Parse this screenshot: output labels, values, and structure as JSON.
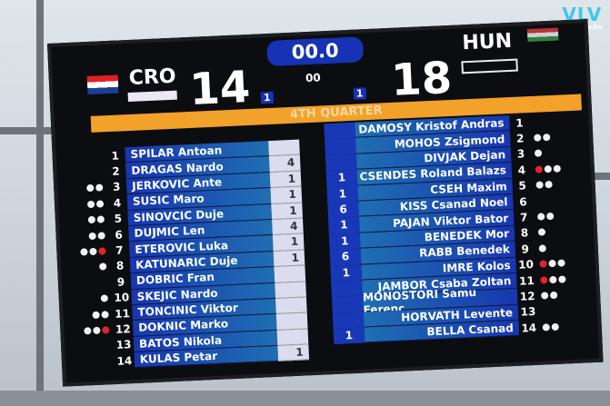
{
  "logo": {
    "mark": "VLV",
    "url": "www.vlv.hu"
  },
  "clock": "00.0",
  "shot_clock": "00",
  "period": "4TH QUARTER",
  "home": {
    "code": "CRO",
    "score": "14",
    "timeouts": "1",
    "flag": "croatia-flag",
    "players": [
      {
        "no": "1",
        "name": "SPILAR Antoan",
        "goals": "",
        "fouls": 0,
        "red": false
      },
      {
        "no": "2",
        "name": "DRAGAS Nardo",
        "goals": "4",
        "fouls": 0,
        "red": false
      },
      {
        "no": "3",
        "name": "JERKOVIC Ante",
        "goals": "1",
        "fouls": 2,
        "red": false
      },
      {
        "no": "4",
        "name": "SUSIC Maro",
        "goals": "1",
        "fouls": 2,
        "red": false
      },
      {
        "no": "5",
        "name": "SINOVCIC Duje",
        "goals": "1",
        "fouls": 2,
        "red": false
      },
      {
        "no": "6",
        "name": "DUJMIC Len",
        "goals": "4",
        "fouls": 2,
        "red": false
      },
      {
        "no": "7",
        "name": "ETEROVIC Luka",
        "goals": "1",
        "fouls": 2,
        "red": true
      },
      {
        "no": "8",
        "name": "KATUNARIC Duje",
        "goals": "1",
        "fouls": 1,
        "red": false
      },
      {
        "no": "9",
        "name": "DOBRIC Fran",
        "goals": "",
        "fouls": 0,
        "red": false
      },
      {
        "no": "10",
        "name": "SKEJIC Nardo",
        "goals": "",
        "fouls": 1,
        "red": false
      },
      {
        "no": "11",
        "name": "TONCINIC Viktor",
        "goals": "",
        "fouls": 2,
        "red": false
      },
      {
        "no": "12",
        "name": "DOKNIC Marko",
        "goals": "",
        "fouls": 2,
        "red": true
      },
      {
        "no": "13",
        "name": "BATOS Nikola",
        "goals": "",
        "fouls": 0,
        "red": false
      },
      {
        "no": "14",
        "name": "KULAS Petar",
        "goals": "1",
        "fouls": 0,
        "red": false
      }
    ]
  },
  "away": {
    "code": "HUN",
    "score": "18",
    "timeouts": "1",
    "flag": "hungary-flag",
    "players": [
      {
        "no": "1",
        "name": "DAMOSY Kristof Andras",
        "goals": "",
        "fouls": 0,
        "red": false
      },
      {
        "no": "2",
        "name": "MOHOS Zsigmond",
        "goals": "",
        "fouls": 2,
        "red": false
      },
      {
        "no": "3",
        "name": "DIVJAK Dejan",
        "goals": "",
        "fouls": 1,
        "red": false
      },
      {
        "no": "4",
        "name": "CSENDES Roland Balazs",
        "goals": "1",
        "fouls": 2,
        "red": true
      },
      {
        "no": "5",
        "name": "CSEH Maxim",
        "goals": "1",
        "fouls": 2,
        "red": false
      },
      {
        "no": "6",
        "name": "KISS Csanad Noel",
        "goals": "6",
        "fouls": 0,
        "red": false
      },
      {
        "no": "7",
        "name": "PAJAN Viktor Bator",
        "goals": "1",
        "fouls": 2,
        "red": false
      },
      {
        "no": "8",
        "name": "BENEDEK Mor",
        "goals": "1",
        "fouls": 1,
        "red": false
      },
      {
        "no": "9",
        "name": "RABB Benedek",
        "goals": "6",
        "fouls": 1,
        "red": false
      },
      {
        "no": "10",
        "name": "IMRE Kolos",
        "goals": "1",
        "fouls": 2,
        "red": true
      },
      {
        "no": "11",
        "name": "JAMBOR Csaba Zoltan",
        "goals": "",
        "fouls": 2,
        "red": true
      },
      {
        "no": "12",
        "name": "MONOSTORI Samu Ferenc",
        "goals": "",
        "fouls": 2,
        "red": false
      },
      {
        "no": "13",
        "name": "HORVATH Levente",
        "goals": "",
        "fouls": 0,
        "red": false
      },
      {
        "no": "14",
        "name": "BELLA Csanad",
        "goals": "1",
        "fouls": 2,
        "red": false
      }
    ]
  },
  "colors": {
    "orange_bar": "#f2a12a",
    "clock_bg": "#1633b5",
    "foul_white": "#f2f2f2",
    "foul_red": "#e5212b"
  }
}
